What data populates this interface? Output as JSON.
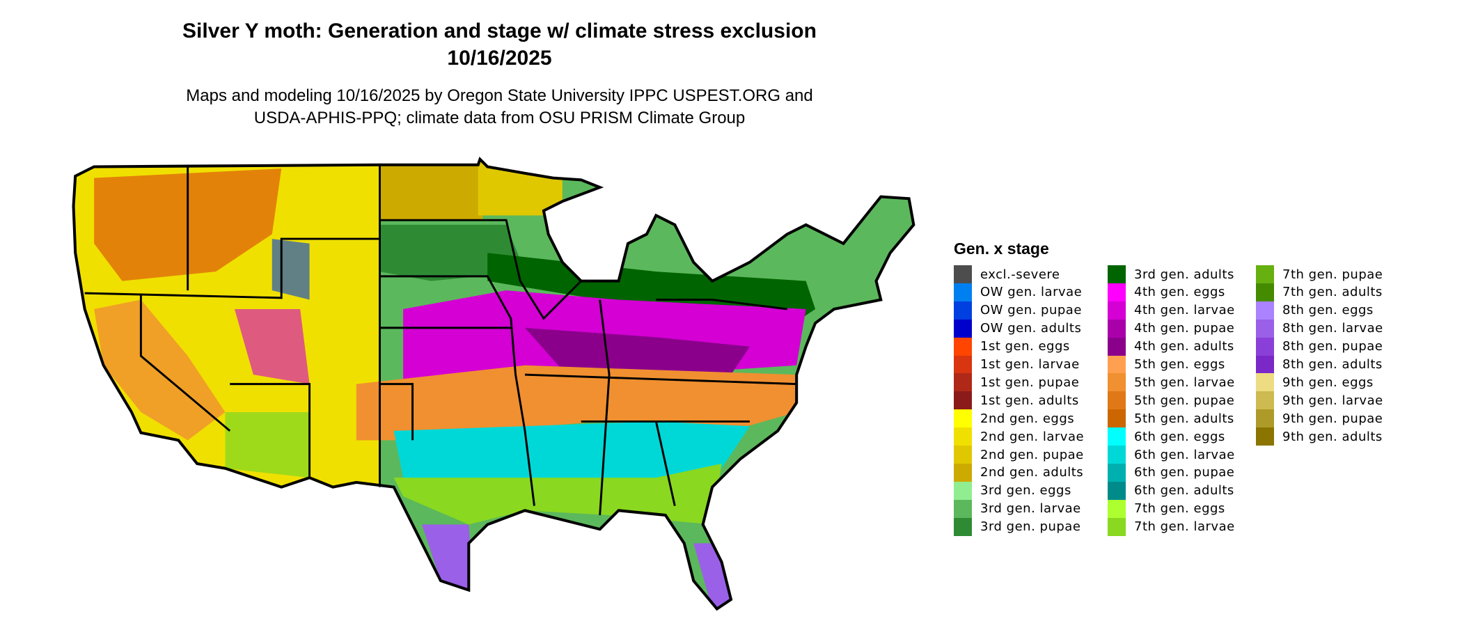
{
  "title": {
    "line1": "Silver Y moth: Generation and stage w/ climate stress exclusion",
    "line2": "10/16/2025"
  },
  "subtitle": {
    "line1": "Maps and modeling 10/16/2025 by Oregon State University IPPC USPEST.ORG and",
    "line2": "USDA-APHIS-PPQ; climate data from OSU PRISM Climate Group"
  },
  "map": {
    "region": "Contiguous United States",
    "border_color": "#000000"
  },
  "legend": {
    "title": "Gen. x stage",
    "items": [
      {
        "label": "excl.-severe",
        "color": "#4d4d4d"
      },
      {
        "label": "OW gen. larvae",
        "color": "#0080f0"
      },
      {
        "label": "OW gen. pupae",
        "color": "#0040e0"
      },
      {
        "label": "OW gen. adults",
        "color": "#0000cc"
      },
      {
        "label": "1st gen. eggs",
        "color": "#ff4500"
      },
      {
        "label": "1st gen. larvae",
        "color": "#d83510"
      },
      {
        "label": "1st gen. pupae",
        "color": "#b02818"
      },
      {
        "label": "1st gen. adults",
        "color": "#8b1a1a"
      },
      {
        "label": "2nd gen. eggs",
        "color": "#ffff00"
      },
      {
        "label": "2nd gen. larvae",
        "color": "#f0e000"
      },
      {
        "label": "2nd gen. pupae",
        "color": "#e0c800"
      },
      {
        "label": "2nd gen. adults",
        "color": "#ccaa00"
      },
      {
        "label": "3rd gen. eggs",
        "color": "#90ee90"
      },
      {
        "label": "3rd gen. larvae",
        "color": "#5cb85c"
      },
      {
        "label": "3rd gen. pupae",
        "color": "#2e8b34"
      },
      {
        "label": "3rd gen. adults",
        "color": "#006400"
      },
      {
        "label": "4th gen. eggs",
        "color": "#ff00ff"
      },
      {
        "label": "4th gen. larvae",
        "color": "#d400d4"
      },
      {
        "label": "4th gen. pupae",
        "color": "#aa00aa"
      },
      {
        "label": "4th gen. adults",
        "color": "#8b008b"
      },
      {
        "label": "5th gen. eggs",
        "color": "#ffa050"
      },
      {
        "label": "5th gen. larvae",
        "color": "#f09030"
      },
      {
        "label": "5th gen. pupae",
        "color": "#e07818"
      },
      {
        "label": "5th gen. adults",
        "color": "#cc6600"
      },
      {
        "label": "6th gen. eggs",
        "color": "#00ffff"
      },
      {
        "label": "6th gen. larvae",
        "color": "#00d8d8"
      },
      {
        "label": "6th gen. pupae",
        "color": "#00b0b0"
      },
      {
        "label": "6th gen. adults",
        "color": "#008b8b"
      },
      {
        "label": "7th gen. eggs",
        "color": "#adff2f"
      },
      {
        "label": "7th gen. larvae",
        "color": "#8ad820"
      },
      {
        "label": "7th gen. pupae",
        "color": "#66b010"
      },
      {
        "label": "7th gen. adults",
        "color": "#458b00"
      },
      {
        "label": "8th gen. eggs",
        "color": "#ab82ff"
      },
      {
        "label": "8th gen. larvae",
        "color": "#9a60e8"
      },
      {
        "label": "8th gen. pupae",
        "color": "#8a40d8"
      },
      {
        "label": "8th gen. adults",
        "color": "#7a28c8"
      },
      {
        "label": "9th gen. eggs",
        "color": "#eedc82"
      },
      {
        "label": "9th gen. larvae",
        "color": "#cdba50"
      },
      {
        "label": "9th gen. pupae",
        "color": "#ad9a28"
      },
      {
        "label": "9th gen. adults",
        "color": "#8b7500"
      }
    ]
  }
}
